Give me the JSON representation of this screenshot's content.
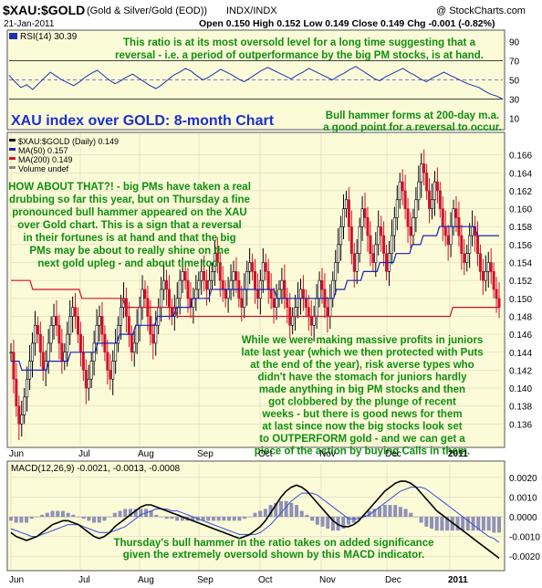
{
  "header": {
    "symbol": "$XAU:$GOLD",
    "description": "(Gold & Silver/Gold (EOD))",
    "exchange": "INDX/INDX",
    "copyright": "@ StockCharts.com",
    "date": "21-Jan-2011",
    "ohlc": "Open 0.150  High 0.152  Low 0.149  Close 0.149  Chg -0.001 (-0.82%)"
  },
  "colors": {
    "panel_bg": "#fbfbd8",
    "annotation_green": "#0f8f0f",
    "title_blue": "#1b2fd0",
    "up_bar": "#000000",
    "down_bar": "#d4102a",
    "ma50": "#1a22b0",
    "ma200": "#d4102a",
    "macd_line": "#000000",
    "signal_line": "#3a4ad8",
    "histogram": "#9090b8"
  },
  "annotations": {
    "rsi_note": "This ratio is at its most oversold level for a long time suggesting that a reversal - i.e. a period of outperformance by the big PM stocks, is at hand.",
    "chart_title": "XAU index over GOLD: 8-month Chart",
    "hammer_note": "Bull hammer forms at 200-day m.a. a good point for a reversal to occur.",
    "left_note": "HOW ABOUT THAT?! - big PMs have taken a real drubbing so far this year, but on Thursday a fine pronounced bull hammer appeared on the XAU over Gold chart. This is a sign that a reversal in their fortunes is at hand and that the big PMs may be about to really shine on the next gold upleg - and about time too.",
    "right_note": "While we were making massive profits in juniors late last year (which we then protected with Puts at the end of the year), risk averse types who didn't have the stomach for juniors hardly made anything in big PM stocks and then got clobbered by the plunge of recent weeks - but there is good news for them at last since now the big stocks look set to OUTPERFORM gold - and we can get a piece of the action by buying Calls in them.",
    "macd_note": "Thursday's bull hammer in the ratio takes on added significance given the extremely oversold shown by this MACD indicator."
  },
  "chart_data": [
    {
      "type": "line",
      "panel": "RSI",
      "legend": "RSI(14) 30.39",
      "ylim": [
        0,
        100
      ],
      "y_ticks": [
        10,
        30,
        50,
        70,
        90
      ],
      "reference_lines": [
        30,
        50,
        70
      ],
      "series": [
        {
          "values": [
            55,
            48,
            42,
            45,
            40,
            46,
            52,
            58,
            54,
            50,
            47,
            44,
            48,
            53,
            57,
            60,
            55,
            50,
            46,
            49,
            53,
            56,
            52,
            48,
            44,
            41,
            45,
            50,
            55,
            58,
            62,
            59,
            54,
            50,
            53,
            57,
            61,
            58,
            55,
            51,
            48,
            52,
            56,
            60,
            63,
            60,
            57,
            54,
            51,
            55,
            58,
            62,
            59,
            56,
            53,
            50,
            54,
            57,
            61,
            64,
            60,
            56,
            52,
            49,
            53,
            56,
            59,
            62,
            58,
            55,
            51,
            48,
            52,
            55,
            58,
            55,
            52,
            49,
            46,
            44,
            42,
            38,
            35,
            33,
            30
          ]
        }
      ]
    },
    {
      "type": "candlestick",
      "panel": "price",
      "legend": [
        "$XAU:$GOLD (Daily) 0.149",
        "MA(50) 0.157",
        "MA(200) 0.149",
        "Volume undef"
      ],
      "x_labels": [
        "Jun",
        "Jul",
        "Aug",
        "Sep",
        "Oct",
        "Nov",
        "Dec",
        "2011"
      ],
      "ylim": [
        0.134,
        0.168
      ],
      "y_ticks": [
        0.136,
        0.138,
        0.14,
        0.142,
        0.144,
        0.146,
        0.148,
        0.15,
        0.152,
        0.154,
        0.156,
        0.158,
        0.16,
        0.162,
        0.164,
        0.166
      ],
      "closes": [
        0.144,
        0.141,
        0.138,
        0.136,
        0.137,
        0.139,
        0.141,
        0.143,
        0.145,
        0.147,
        0.146,
        0.144,
        0.142,
        0.143,
        0.145,
        0.147,
        0.148,
        0.147,
        0.145,
        0.143,
        0.144,
        0.146,
        0.148,
        0.149,
        0.148,
        0.146,
        0.144,
        0.142,
        0.14,
        0.141,
        0.143,
        0.145,
        0.147,
        0.148,
        0.146,
        0.144,
        0.142,
        0.141,
        0.143,
        0.145,
        0.147,
        0.149,
        0.15,
        0.148,
        0.146,
        0.144,
        0.145,
        0.147,
        0.149,
        0.151,
        0.15,
        0.148,
        0.146,
        0.145,
        0.147,
        0.149,
        0.151,
        0.152,
        0.151,
        0.149,
        0.148,
        0.149,
        0.15,
        0.152,
        0.153,
        0.152,
        0.15,
        0.149,
        0.15,
        0.151,
        0.152,
        0.153,
        0.152,
        0.151,
        0.152,
        0.153,
        0.155,
        0.154,
        0.152,
        0.151,
        0.15,
        0.151,
        0.152,
        0.153,
        0.152,
        0.15,
        0.149,
        0.151,
        0.153,
        0.154,
        0.153,
        0.151,
        0.15,
        0.152,
        0.154,
        0.153,
        0.151,
        0.15,
        0.149,
        0.15,
        0.151,
        0.152,
        0.15,
        0.149,
        0.147,
        0.148,
        0.149,
        0.15,
        0.151,
        0.15,
        0.149,
        0.148,
        0.147,
        0.148,
        0.15,
        0.152,
        0.151,
        0.149,
        0.148,
        0.15,
        0.152,
        0.154,
        0.156,
        0.158,
        0.16,
        0.161,
        0.158,
        0.155,
        0.153,
        0.155,
        0.158,
        0.16,
        0.159,
        0.157,
        0.155,
        0.154,
        0.156,
        0.158,
        0.157,
        0.155,
        0.153,
        0.155,
        0.157,
        0.159,
        0.161,
        0.163,
        0.162,
        0.16,
        0.158,
        0.157,
        0.159,
        0.161,
        0.163,
        0.165,
        0.164,
        0.162,
        0.16,
        0.161,
        0.163,
        0.162,
        0.16,
        0.158,
        0.157,
        0.156,
        0.158,
        0.16,
        0.159,
        0.157,
        0.155,
        0.154,
        0.155,
        0.157,
        0.158,
        0.157,
        0.155,
        0.153,
        0.152,
        0.153,
        0.154,
        0.153,
        0.151,
        0.15,
        0.149
      ],
      "ma50": [
        0.143,
        0.143,
        0.143,
        0.143,
        0.142,
        0.142,
        0.142,
        0.142,
        0.142,
        0.142,
        0.142,
        0.142,
        0.142,
        0.142,
        0.143,
        0.143,
        0.143,
        0.143,
        0.143,
        0.143,
        0.143,
        0.143,
        0.144,
        0.144,
        0.144,
        0.144,
        0.144,
        0.144,
        0.144,
        0.144,
        0.144,
        0.144,
        0.145,
        0.145,
        0.145,
        0.145,
        0.145,
        0.145,
        0.145,
        0.145,
        0.146,
        0.146,
        0.146,
        0.146,
        0.146,
        0.146,
        0.147,
        0.147,
        0.147,
        0.147,
        0.147,
        0.147,
        0.147,
        0.147,
        0.148,
        0.148,
        0.148,
        0.148,
        0.148,
        0.148,
        0.148,
        0.149,
        0.149,
        0.149,
        0.149,
        0.149,
        0.149,
        0.15,
        0.15,
        0.15,
        0.15,
        0.15,
        0.15,
        0.15,
        0.151,
        0.151,
        0.151,
        0.151,
        0.151,
        0.151,
        0.151,
        0.151,
        0.151,
        0.151,
        0.151,
        0.151,
        0.151,
        0.151,
        0.151,
        0.151,
        0.151,
        0.151,
        0.151,
        0.151,
        0.151,
        0.151,
        0.151,
        0.151,
        0.15,
        0.15,
        0.15,
        0.15,
        0.15,
        0.15,
        0.15,
        0.15,
        0.15,
        0.15,
        0.15,
        0.15,
        0.15,
        0.15,
        0.15,
        0.15,
        0.15,
        0.15,
        0.15,
        0.15,
        0.15,
        0.15,
        0.151,
        0.151,
        0.151,
        0.151,
        0.152,
        0.152,
        0.152,
        0.152,
        0.152,
        0.152,
        0.153,
        0.153,
        0.153,
        0.153,
        0.153,
        0.153,
        0.154,
        0.154,
        0.154,
        0.154,
        0.154,
        0.154,
        0.155,
        0.155,
        0.155,
        0.155,
        0.155,
        0.155,
        0.156,
        0.156,
        0.156,
        0.156,
        0.157,
        0.157,
        0.157,
        0.157,
        0.157,
        0.157,
        0.158,
        0.158,
        0.158,
        0.158,
        0.158,
        0.158,
        0.158,
        0.158,
        0.158,
        0.158,
        0.158,
        0.158,
        0.158,
        0.158,
        0.157,
        0.157,
        0.157,
        0.157,
        0.157,
        0.157,
        0.157,
        0.157,
        0.157
      ],
      "ma200": [
        0.152,
        0.152,
        0.152,
        0.152,
        0.152,
        0.152,
        0.152,
        0.152,
        0.151,
        0.151,
        0.151,
        0.151,
        0.151,
        0.151,
        0.151,
        0.151,
        0.151,
        0.151,
        0.151,
        0.151,
        0.151,
        0.151,
        0.151,
        0.151,
        0.151,
        0.151,
        0.15,
        0.15,
        0.15,
        0.15,
        0.15,
        0.15,
        0.15,
        0.15,
        0.15,
        0.15,
        0.15,
        0.15,
        0.15,
        0.15,
        0.15,
        0.15,
        0.149,
        0.149,
        0.149,
        0.149,
        0.149,
        0.149,
        0.149,
        0.149,
        0.149,
        0.149,
        0.149,
        0.149,
        0.149,
        0.149,
        0.149,
        0.149,
        0.149,
        0.149,
        0.149,
        0.148,
        0.148,
        0.148,
        0.148,
        0.148,
        0.148,
        0.148,
        0.148,
        0.148,
        0.148,
        0.148,
        0.148,
        0.148,
        0.148,
        0.148,
        0.148,
        0.148,
        0.148,
        0.148,
        0.148,
        0.148,
        0.148,
        0.148,
        0.148,
        0.148,
        0.148,
        0.148,
        0.148,
        0.148,
        0.148,
        0.148,
        0.148,
        0.148,
        0.148,
        0.148,
        0.148,
        0.148,
        0.148,
        0.148,
        0.148,
        0.148,
        0.148,
        0.148,
        0.148,
        0.148,
        0.148,
        0.148,
        0.148,
        0.148,
        0.148,
        0.148,
        0.148,
        0.148,
        0.148,
        0.148,
        0.148,
        0.148,
        0.148,
        0.148,
        0.148,
        0.148,
        0.148,
        0.148,
        0.148,
        0.148,
        0.148,
        0.148,
        0.148,
        0.148,
        0.148,
        0.148,
        0.148,
        0.148,
        0.148,
        0.148,
        0.148,
        0.148,
        0.148,
        0.148,
        0.148,
        0.148,
        0.148,
        0.148,
        0.148,
        0.148,
        0.148,
        0.148,
        0.148,
        0.148,
        0.148,
        0.148,
        0.148,
        0.148,
        0.148,
        0.148,
        0.148,
        0.148,
        0.148,
        0.148,
        0.148,
        0.148,
        0.149,
        0.149,
        0.149,
        0.149,
        0.149,
        0.149,
        0.149,
        0.149,
        0.149,
        0.149,
        0.149,
        0.149,
        0.149,
        0.149,
        0.149,
        0.149,
        0.149,
        0.149
      ]
    },
    {
      "type": "line",
      "panel": "MACD",
      "legend": "MACD(12,26,9) -0.0021, -0.0013, -0.0008",
      "x_labels": [
        "Jun",
        "Jul",
        "Aug",
        "Sep",
        "Oct",
        "Nov",
        "Dec",
        "2011"
      ],
      "ylim": [
        -0.0025,
        0.0025
      ],
      "y_ticks": [
        -0.002,
        -0.001,
        0.0,
        0.001,
        0.002
      ],
      "series": [
        {
          "name": "MACD",
          "values": [
            -0.0008,
            -0.001,
            -0.0011,
            -0.0012,
            -0.0011,
            -0.001,
            -0.0008,
            -0.0006,
            -0.0004,
            -0.0003,
            -0.0002,
            -0.0002,
            -0.0003,
            -0.0004,
            -0.0006,
            -0.0008,
            -0.001,
            -0.0011,
            -0.001,
            -0.0008,
            -0.0005,
            -0.0003,
            -0.0001,
            0.0001,
            0.0003,
            0.0005,
            0.0006,
            0.0006,
            0.0005,
            0.0004,
            0.0003,
            0.0002,
            0.0001,
            0.0,
            -0.0001,
            -0.0002,
            -0.0003,
            -0.0004,
            -0.0005,
            -0.0006,
            -0.0007,
            -0.0008,
            -0.0009,
            -0.001,
            -0.0011,
            -0.001,
            -0.0009,
            -0.0007,
            -0.0005,
            -0.0002,
            0.0002,
            0.0006,
            0.001,
            0.0013,
            0.0015,
            0.0016,
            0.0015,
            0.0013,
            0.001,
            0.0007,
            0.0004,
            0.0001,
            -0.0002,
            -0.0004,
            -0.0005,
            -0.0005,
            -0.0004,
            -0.0002,
            0.0001,
            0.0004,
            0.0007,
            0.001,
            0.0013,
            0.0015,
            0.0017,
            0.0018,
            0.0018,
            0.0017,
            0.0015,
            0.0012,
            0.0009,
            0.0006,
            0.0003,
            0.0001,
            -0.0001,
            -0.0003,
            -0.0005,
            -0.0007,
            -0.0009,
            -0.0011,
            -0.0013,
            -0.0015,
            -0.0017,
            -0.0019,
            -0.0021
          ]
        },
        {
          "name": "Signal",
          "values": [
            -0.0006,
            -0.0007,
            -0.0008,
            -0.0009,
            -0.001,
            -0.001,
            -0.0009,
            -0.0008,
            -0.0007,
            -0.0006,
            -0.0005,
            -0.0004,
            -0.0004,
            -0.0004,
            -0.0005,
            -0.0006,
            -0.0007,
            -0.0008,
            -0.0008,
            -0.0008,
            -0.0007,
            -0.0006,
            -0.0005,
            -0.0003,
            -0.0001,
            0.0001,
            0.0002,
            0.0003,
            0.0004,
            0.0004,
            0.0004,
            0.0003,
            0.0003,
            0.0002,
            0.0001,
            0.0,
            -0.0001,
            -0.0002,
            -0.0003,
            -0.0004,
            -0.0005,
            -0.0006,
            -0.0007,
            -0.0008,
            -0.0009,
            -0.0009,
            -0.0009,
            -0.0009,
            -0.0008,
            -0.0006,
            -0.0004,
            -0.0001,
            0.0002,
            0.0005,
            0.0008,
            0.001,
            0.0012,
            0.0012,
            0.0012,
            0.0011,
            0.0009,
            0.0007,
            0.0005,
            0.0003,
            0.0001,
            -0.0001,
            -0.0001,
            -0.0001,
            0.0,
            0.0001,
            0.0003,
            0.0005,
            0.0007,
            0.0009,
            0.0011,
            0.0013,
            0.0014,
            0.0015,
            0.0015,
            0.0015,
            0.0014,
            0.0012,
            0.001,
            0.0008,
            0.0006,
            0.0004,
            0.0002,
            0.0,
            -0.0002,
            -0.0004,
            -0.0006,
            -0.0008,
            -0.001,
            -0.0011,
            -0.0013
          ]
        }
      ]
    }
  ]
}
